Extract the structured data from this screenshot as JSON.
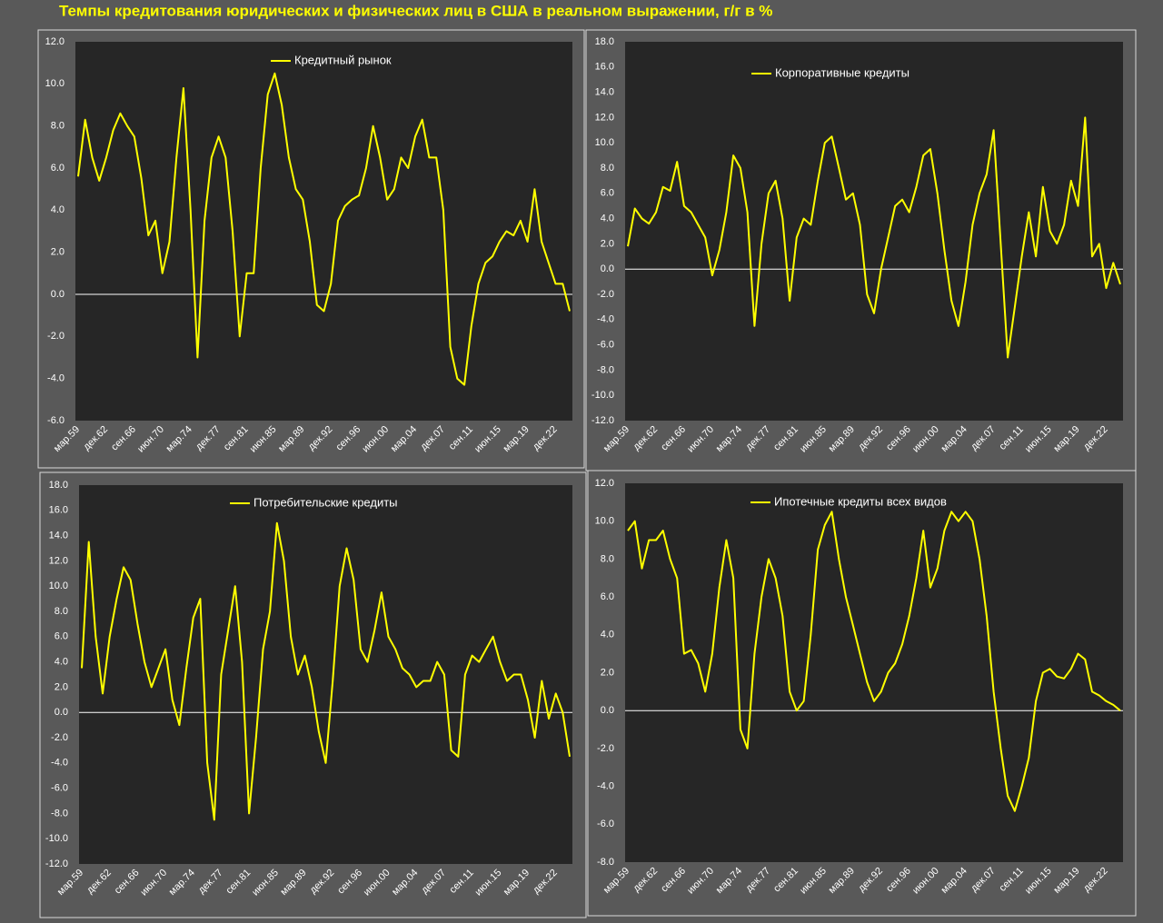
{
  "title": "Темпы кредитования юридических и физических лиц в США в реальном выражении, г/г в %",
  "chart_data": [
    {
      "type": "line",
      "categories": [
        "мар.59",
        null,
        null,
        null,
        "дек.62",
        null,
        null,
        null,
        "сен.66",
        null,
        null,
        null,
        "июн.70",
        null,
        null,
        null,
        "мар.74",
        null,
        null,
        null,
        "дек.77",
        null,
        null,
        null,
        "сен.81",
        null,
        null,
        null,
        "июн.85",
        null,
        null,
        null,
        "мар.89",
        null,
        null,
        null,
        "дек.92",
        null,
        null,
        null,
        "сен.96",
        null,
        null,
        null,
        "июн.00",
        null,
        null,
        null,
        "мар.04",
        null,
        null,
        null,
        "дек.07",
        null,
        null,
        null,
        "сен.11",
        null,
        null,
        null,
        "июн.15",
        null,
        null,
        null,
        "мар.19",
        null,
        null,
        null,
        "дек.22",
        null,
        null
      ],
      "series": [
        {
          "name": "Кредитный рынок",
          "color": "#ffff00",
          "values": [
            5.6,
            8.3,
            6.5,
            5.4,
            6.5,
            7.8,
            8.6,
            8.0,
            7.5,
            5.5,
            2.8,
            3.5,
            1.0,
            2.5,
            6.5,
            9.8,
            4.0,
            -3.0,
            3.5,
            6.5,
            7.5,
            6.5,
            3.0,
            -2.0,
            1.0,
            1.0,
            6.0,
            9.5,
            10.5,
            9.0,
            6.5,
            5.0,
            4.5,
            2.5,
            -0.5,
            -0.8,
            0.5,
            3.5,
            4.2,
            4.5,
            4.7,
            6.0,
            8.0,
            6.5,
            4.5,
            5.0,
            6.5,
            6.0,
            7.5,
            8.3,
            6.5,
            6.5,
            4.0,
            -2.5,
            -4.0,
            -4.3,
            -1.5,
            0.5,
            1.5,
            1.8,
            2.5,
            3.0,
            2.8,
            3.5,
            2.5,
            5.0,
            2.5,
            1.5,
            0.5,
            0.5,
            -0.8
          ]
        }
      ],
      "ylim": [
        -6,
        12
      ],
      "yticks": [
        {
          "value": -6,
          "label": "-6.0"
        },
        {
          "value": -4,
          "label": "-4.0"
        },
        {
          "value": -2,
          "label": "-2.0"
        },
        {
          "value": 0,
          "label": "0.0"
        },
        {
          "value": 2,
          "label": "2.0"
        },
        {
          "value": 4,
          "label": "4.0"
        },
        {
          "value": 6,
          "label": "6.0"
        },
        {
          "value": 8,
          "label": "8.0"
        },
        {
          "value": 10,
          "label": "10.0"
        },
        {
          "value": 12,
          "label": "12.0"
        }
      ]
    },
    {
      "type": "line",
      "categories": [
        "мар.59",
        null,
        null,
        null,
        "дек.62",
        null,
        null,
        null,
        "сен.66",
        null,
        null,
        null,
        "июн.70",
        null,
        null,
        null,
        "мар.74",
        null,
        null,
        null,
        "дек.77",
        null,
        null,
        null,
        "сен.81",
        null,
        null,
        null,
        "июн.85",
        null,
        null,
        null,
        "мар.89",
        null,
        null,
        null,
        "дек.92",
        null,
        null,
        null,
        "сен.96",
        null,
        null,
        null,
        "июн.00",
        null,
        null,
        null,
        "мар.04",
        null,
        null,
        null,
        "дек.07",
        null,
        null,
        null,
        "сен.11",
        null,
        null,
        null,
        "июн.15",
        null,
        null,
        null,
        "мар.19",
        null,
        null,
        null,
        "дек.22",
        null,
        null
      ],
      "series": [
        {
          "name": "Корпоративные кредиты",
          "color": "#ffff00",
          "values": [
            1.8,
            4.8,
            4.0,
            3.6,
            4.5,
            6.5,
            6.2,
            8.5,
            5.0,
            4.5,
            3.5,
            2.5,
            -0.5,
            1.5,
            4.5,
            9.0,
            8.0,
            4.5,
            -4.5,
            2.0,
            6.0,
            7.0,
            4.0,
            -2.5,
            2.5,
            4.0,
            3.5,
            7.0,
            10.0,
            10.5,
            8.0,
            5.5,
            6.0,
            3.5,
            -2.0,
            -3.5,
            0.0,
            2.5,
            5.0,
            5.5,
            4.5,
            6.5,
            9.0,
            9.5,
            6.0,
            1.5,
            -2.5,
            -4.5,
            -1.0,
            3.5,
            6.0,
            7.5,
            11.0,
            2.0,
            -7.0,
            -3.0,
            1.0,
            4.5,
            1.0,
            6.5,
            3.0,
            2.0,
            3.5,
            7.0,
            5.0,
            12.0,
            1.0,
            2.0,
            -1.5,
            0.5,
            -1.2
          ]
        }
      ],
      "ylim": [
        -12,
        18
      ],
      "yticks": [
        {
          "value": -12,
          "label": "-12.0"
        },
        {
          "value": -10,
          "label": "-10.0"
        },
        {
          "value": -8,
          "label": "-8.0"
        },
        {
          "value": -6,
          "label": "-6.0"
        },
        {
          "value": -4,
          "label": "-4.0"
        },
        {
          "value": -2,
          "label": "-2.0"
        },
        {
          "value": 0,
          "label": "0.0"
        },
        {
          "value": 2,
          "label": "2.0"
        },
        {
          "value": 4,
          "label": "4.0"
        },
        {
          "value": 6,
          "label": "6.0"
        },
        {
          "value": 8,
          "label": "8.0"
        },
        {
          "value": 10,
          "label": "10.0"
        },
        {
          "value": 12,
          "label": "12.0"
        },
        {
          "value": 14,
          "label": "14.0"
        },
        {
          "value": 16,
          "label": "16.0"
        },
        {
          "value": 18,
          "label": "18.0"
        }
      ]
    },
    {
      "type": "line",
      "categories": [
        "мар.59",
        null,
        null,
        null,
        "дек.62",
        null,
        null,
        null,
        "сен.66",
        null,
        null,
        null,
        "июн.70",
        null,
        null,
        null,
        "мар.74",
        null,
        null,
        null,
        "дек.77",
        null,
        null,
        null,
        "сен.81",
        null,
        null,
        null,
        "июн.85",
        null,
        null,
        null,
        "мар.89",
        null,
        null,
        null,
        "дек.92",
        null,
        null,
        null,
        "сен.96",
        null,
        null,
        null,
        "июн.00",
        null,
        null,
        null,
        "мар.04",
        null,
        null,
        null,
        "дек.07",
        null,
        null,
        null,
        "сен.11",
        null,
        null,
        null,
        "июн.15",
        null,
        null,
        null,
        "мар.19",
        null,
        null,
        null,
        "дек.22",
        null,
        null
      ],
      "series": [
        {
          "name": "Потребительские кредиты",
          "color": "#ffff00",
          "values": [
            3.5,
            13.5,
            6.0,
            1.5,
            6.0,
            9.0,
            11.5,
            10.5,
            7.0,
            4.0,
            2.0,
            3.5,
            5.0,
            1.0,
            -1.0,
            3.5,
            7.5,
            9.0,
            -4.0,
            -8.5,
            3.0,
            6.5,
            10.0,
            4.0,
            -8.0,
            -2.0,
            5.0,
            8.0,
            15.0,
            12.0,
            6.0,
            3.0,
            4.5,
            2.0,
            -1.5,
            -4.0,
            2.5,
            10.0,
            13.0,
            10.5,
            5.0,
            4.0,
            6.5,
            9.5,
            6.0,
            5.0,
            3.5,
            3.0,
            2.0,
            2.5,
            2.5,
            4.0,
            3.0,
            -3.0,
            -3.5,
            3.0,
            4.5,
            4.0,
            5.0,
            6.0,
            4.0,
            2.5,
            3.0,
            3.0,
            1.0,
            -2.0,
            2.5,
            -0.5,
            1.5,
            0.0,
            -3.5
          ]
        }
      ],
      "ylim": [
        -12,
        18
      ],
      "yticks": [
        {
          "value": -12,
          "label": "-12.0"
        },
        {
          "value": -10,
          "label": "-10.0"
        },
        {
          "value": -8,
          "label": "-8.0"
        },
        {
          "value": -6,
          "label": "-6.0"
        },
        {
          "value": -4,
          "label": "-4.0"
        },
        {
          "value": -2,
          "label": "-2.0"
        },
        {
          "value": 0,
          "label": "0.0"
        },
        {
          "value": 2,
          "label": "2.0"
        },
        {
          "value": 4,
          "label": "4.0"
        },
        {
          "value": 6,
          "label": "6.0"
        },
        {
          "value": 8,
          "label": "8.0"
        },
        {
          "value": 10,
          "label": "10.0"
        },
        {
          "value": 12,
          "label": "12.0"
        },
        {
          "value": 14,
          "label": "14.0"
        },
        {
          "value": 16,
          "label": "16.0"
        },
        {
          "value": 18,
          "label": "18.0"
        }
      ]
    },
    {
      "type": "line",
      "categories": [
        "мар.59",
        null,
        null,
        null,
        "дек.62",
        null,
        null,
        null,
        "сен.66",
        null,
        null,
        null,
        "июн.70",
        null,
        null,
        null,
        "мар.74",
        null,
        null,
        null,
        "дек.77",
        null,
        null,
        null,
        "сен.81",
        null,
        null,
        null,
        "июн.85",
        null,
        null,
        null,
        "мар.89",
        null,
        null,
        null,
        "дек.92",
        null,
        null,
        null,
        "сен.96",
        null,
        null,
        null,
        "июн.00",
        null,
        null,
        null,
        "мар.04",
        null,
        null,
        null,
        "дек.07",
        null,
        null,
        null,
        "сен.11",
        null,
        null,
        null,
        "июн.15",
        null,
        null,
        null,
        "мар.19",
        null,
        null,
        null,
        "дек.22",
        null,
        null
      ],
      "series": [
        {
          "name": "Ипотечные кредиты всех видов",
          "color": "#ffff00",
          "values": [
            9.5,
            10.0,
            7.5,
            9.0,
            9.0,
            9.5,
            8.0,
            7.0,
            3.0,
            3.2,
            2.5,
            1.0,
            3.0,
            6.5,
            9.0,
            7.0,
            -1.0,
            -2.0,
            3.0,
            6.0,
            8.0,
            7.0,
            5.0,
            1.0,
            0.0,
            0.5,
            4.0,
            8.5,
            9.8,
            10.5,
            8.0,
            6.0,
            4.5,
            3.0,
            1.5,
            0.5,
            1.0,
            2.0,
            2.5,
            3.5,
            5.0,
            7.0,
            9.5,
            6.5,
            7.5,
            9.5,
            10.5,
            10.0,
            10.5,
            10.0,
            8.0,
            5.0,
            1.0,
            -2.0,
            -4.5,
            -5.3,
            -4.0,
            -2.5,
            0.5,
            2.0,
            2.2,
            1.8,
            1.7,
            2.2,
            3.0,
            2.7,
            1.0,
            0.8,
            0.5,
            0.3,
            0.0
          ]
        }
      ],
      "ylim": [
        -8,
        12
      ],
      "yticks": [
        {
          "value": -8,
          "label": "-8.0"
        },
        {
          "value": -6,
          "label": "-6.0"
        },
        {
          "value": -4,
          "label": "-4.0"
        },
        {
          "value": -2,
          "label": "-2.0"
        },
        {
          "value": 0,
          "label": "0.0"
        },
        {
          "value": 2,
          "label": "2.0"
        },
        {
          "value": 4,
          "label": "4.0"
        },
        {
          "value": 6,
          "label": "6.0"
        },
        {
          "value": 8,
          "label": "8.0"
        },
        {
          "value": 10,
          "label": "10.0"
        },
        {
          "value": 12,
          "label": "12.0"
        }
      ]
    }
  ]
}
